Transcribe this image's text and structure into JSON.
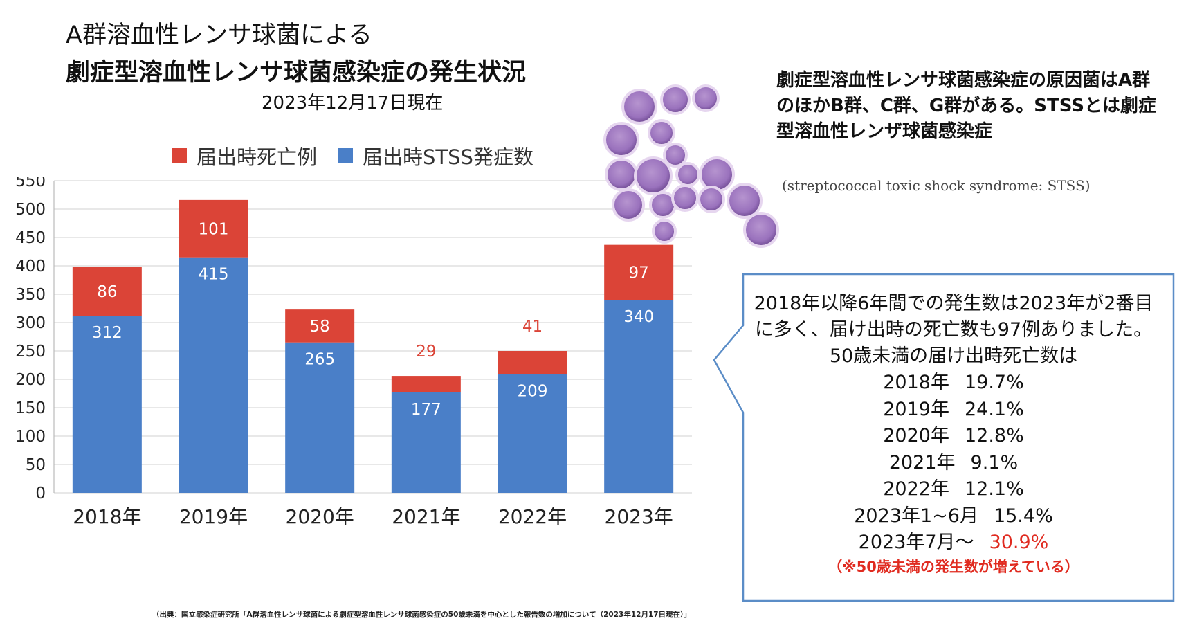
{
  "title": {
    "line1": "A群溶血性レンサ球菌による",
    "line2": "劇症型溶血性レンサ球菌感染症の発生状況"
  },
  "subtitle": "2023年12月17日現在",
  "legend": {
    "deaths": "届出時死亡例",
    "stss": "届出時STSS発症数"
  },
  "colors": {
    "deaths": "#db4437",
    "stss": "#4a7fc8",
    "accent_red": "#e02b20",
    "callout_border": "#5b8dc7"
  },
  "chart_data": {
    "type": "bar",
    "stacked": true,
    "categories": [
      "2018年",
      "2019年",
      "2020年",
      "2021年",
      "2022年",
      "2023年"
    ],
    "series": [
      {
        "name": "届出時STSS発症数",
        "values": [
          312,
          415,
          265,
          177,
          209,
          340
        ]
      },
      {
        "name": "届出時死亡例",
        "values": [
          86,
          101,
          58,
          29,
          41,
          97
        ]
      }
    ],
    "ylim": [
      0,
      550
    ],
    "yticks": [
      0,
      50,
      100,
      150,
      200,
      250,
      300,
      350,
      400,
      450,
      500,
      550
    ],
    "grid": true,
    "legend_position": "top"
  },
  "note": {
    "text": "劇症型溶血性レンサ球菌感染症の原因菌はA群のほかB群、C群、G群がある。STSSとは劇症型溶血性レンザ球菌感染症",
    "english": "(streptococcal toxic shock syndrome: STSS)"
  },
  "callout": {
    "text": "2018年以降6年間での発生数は2023年が2番目に多く、届け出時の死亡数も97例ありました。50歳未満の届け出時死亡数は",
    "rates": [
      {
        "year": "2018年",
        "value": "19.7%"
      },
      {
        "year": "2019年",
        "value": "24.1%"
      },
      {
        "year": "2020年",
        "value": "12.8%"
      },
      {
        "year": "2021年",
        "value": "9.1%"
      },
      {
        "year": "2022年",
        "value": "12.1%"
      },
      {
        "year": "2023年1~6月",
        "value": "15.4%"
      },
      {
        "year": "2023年7月～",
        "value": "30.9%"
      }
    ],
    "footnote": "（※50歳未満の発生数が増えている）"
  },
  "source": "（出典：国立感染症研究所「A群溶血性レンサ球菌による劇症型溶血性レンサ球菌感染症の50歳未満を中心とした報告数の増加について（2023年12月17日現在）」"
}
